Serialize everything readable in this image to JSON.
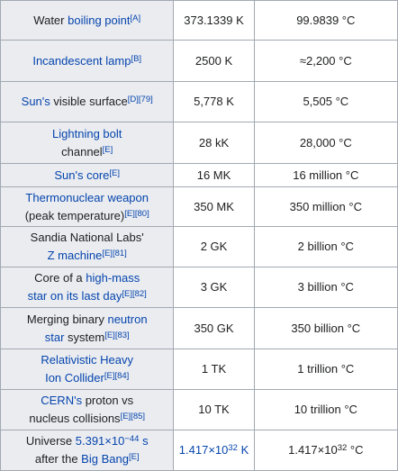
{
  "rows": [
    {
      "object": [
        {
          "t": "Water "
        },
        {
          "t": "boiling point",
          "link": true
        },
        {
          "t": "[A]",
          "sup": true,
          "link": true
        }
      ],
      "kelvin": [
        {
          "t": "373.1339 K"
        }
      ],
      "celsius": [
        {
          "t": "99.9839 °C"
        }
      ]
    },
    {
      "object": [
        {
          "t": "Incandescent lamp",
          "link": true
        },
        {
          "t": "[B]",
          "sup": true,
          "link": true
        }
      ],
      "kelvin": [
        {
          "t": "2500 K"
        }
      ],
      "celsius": [
        {
          "t": "≈2,200 °C"
        }
      ]
    },
    {
      "object": [
        {
          "t": "Sun's",
          "link": true
        },
        {
          "t": " visible surface"
        },
        {
          "t": "[D][79]",
          "sup": true,
          "link": true
        }
      ],
      "kelvin": [
        {
          "t": "5,778 K"
        }
      ],
      "celsius": [
        {
          "t": "5,505 °C"
        }
      ]
    },
    {
      "object": [
        {
          "t": "Lightning bolt",
          "link": true
        },
        {
          "br": true
        },
        {
          "t": "channel"
        },
        {
          "t": "[E]",
          "sup": true,
          "link": true
        }
      ],
      "kelvin": [
        {
          "t": "28 kK"
        }
      ],
      "celsius": [
        {
          "t": "28,000 °C"
        }
      ]
    },
    {
      "object": [
        {
          "t": "Sun's core",
          "link": true
        },
        {
          "t": "[E]",
          "sup": true,
          "link": true
        }
      ],
      "kelvin": [
        {
          "t": "16 MK"
        }
      ],
      "celsius": [
        {
          "t": "16 million °C"
        }
      ]
    },
    {
      "object": [
        {
          "t": "Thermonuclear weapon",
          "link": true
        },
        {
          "br": true
        },
        {
          "t": "(peak temperature)"
        },
        {
          "t": "[E][80]",
          "sup": true,
          "link": true
        }
      ],
      "kelvin": [
        {
          "t": "350 MK"
        }
      ],
      "celsius": [
        {
          "t": "350 million °C"
        }
      ]
    },
    {
      "object": [
        {
          "t": "Sandia National Labs'"
        },
        {
          "br": true
        },
        {
          "t": "Z machine",
          "link": true
        },
        {
          "t": "[E][81]",
          "sup": true,
          "link": true
        }
      ],
      "kelvin": [
        {
          "t": "2 GK"
        }
      ],
      "celsius": [
        {
          "t": "2 billion °C"
        }
      ]
    },
    {
      "object": [
        {
          "t": "Core of a "
        },
        {
          "t": "high-mass",
          "link": true
        },
        {
          "br": true
        },
        {
          "t": "star on its last day",
          "link": true
        },
        {
          "t": "[E][82]",
          "sup": true,
          "link": true
        }
      ],
      "kelvin": [
        {
          "t": "3 GK"
        }
      ],
      "celsius": [
        {
          "t": "3 billion °C"
        }
      ]
    },
    {
      "object": [
        {
          "t": "Merging binary "
        },
        {
          "t": "neutron",
          "link": true
        },
        {
          "br": true
        },
        {
          "t": "star",
          "link": true
        },
        {
          "t": " system"
        },
        {
          "t": "[E][83]",
          "sup": true,
          "link": true
        }
      ],
      "kelvin": [
        {
          "t": "350 GK"
        }
      ],
      "celsius": [
        {
          "t": "350 billion °C"
        }
      ]
    },
    {
      "object": [
        {
          "t": "Relativistic Heavy",
          "link": true
        },
        {
          "br": true
        },
        {
          "t": "Ion Collider",
          "link": true
        },
        {
          "t": "[E][84]",
          "sup": true,
          "link": true
        }
      ],
      "kelvin": [
        {
          "t": "1 TK"
        }
      ],
      "celsius": [
        {
          "t": "1 trillion °C"
        }
      ]
    },
    {
      "object": [
        {
          "t": "CERN's",
          "link": true
        },
        {
          "t": " proton vs"
        },
        {
          "br": true
        },
        {
          "t": "nucleus collisions"
        },
        {
          "t": "[E][85]",
          "sup": true,
          "link": true
        }
      ],
      "kelvin": [
        {
          "t": "10 TK"
        }
      ],
      "celsius": [
        {
          "t": "10 trillion °C"
        }
      ]
    },
    {
      "object": [
        {
          "t": "Universe "
        },
        {
          "t": "5.391×10",
          "link": true
        },
        {
          "t": "−44",
          "sup": true,
          "link": true
        },
        {
          "t": " s",
          "link": true
        },
        {
          "br": true
        },
        {
          "t": "after the "
        },
        {
          "t": "Big Bang",
          "link": true
        },
        {
          "t": "[E]",
          "sup": true,
          "link": true
        }
      ],
      "kelvin": [
        {
          "t": "1.417×10",
          "link": true
        },
        {
          "t": "32",
          "sup": true,
          "link": true
        },
        {
          "t": " K",
          "link": true
        }
      ],
      "celsius": [
        {
          "t": "1.417×10"
        },
        {
          "t": "32",
          "sup": true
        },
        {
          "t": " °C"
        }
      ]
    }
  ]
}
